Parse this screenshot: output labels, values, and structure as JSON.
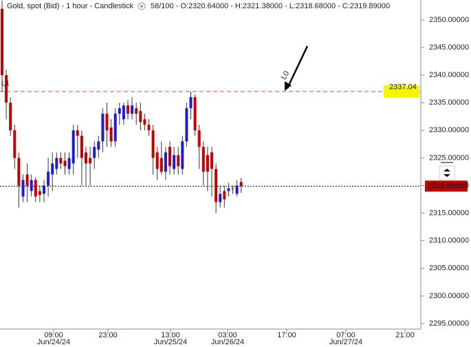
{
  "chart_data": {
    "type": "candlestick",
    "title": "Gold, spot (Bid) - 1 hour - Candlestick",
    "subtitle": "58/100 - O:2320.64000 - H:2321.38000 - L:2318.68000 - C:2319.89000",
    "open": [
      2352,
      2340,
      2335,
      2330,
      2325,
      2318,
      2322,
      2319,
      2321,
      2319,
      2318.5,
      2320,
      2322,
      2323,
      2325,
      2324.5,
      2323,
      2324,
      2330,
      2329,
      2326,
      2325,
      2325,
      2326.5,
      2328,
      2333,
      2330.5,
      2328,
      2333,
      2332,
      2334.5,
      2333,
      2334,
      2333.5,
      2332,
      2331,
      2330,
      2326,
      2325,
      2322.5,
      2327,
      2323,
      2325.5,
      2323,
      2328,
      2334,
      2336,
      2330,
      2327,
      2325.5,
      2326,
      2323,
      2317,
      2319,
      2319,
      2319.5,
      2318.5,
      2320.64
    ],
    "high": [
      2353.5,
      2341,
      2336,
      2331,
      2326,
      2322,
      2324,
      2322,
      2321.5,
      2320,
      2321,
      2325,
      2326,
      2326,
      2326,
      2326,
      2326,
      2331,
      2331,
      2330,
      2327,
      2327,
      2328,
      2329,
      2334,
      2335,
      2332,
      2334,
      2335,
      2335,
      2335.5,
      2336,
      2335,
      2335,
      2333,
      2332,
      2331,
      2327,
      2328,
      2327,
      2328,
      2327,
      2327,
      2329,
      2335,
      2337,
      2336.5,
      2331,
      2328,
      2327,
      2327,
      2324,
      2320,
      2320,
      2320.5,
      2320,
      2321,
      2321.38
    ],
    "low": [
      2337,
      2332,
      2329,
      2323,
      2316,
      2317,
      2317,
      2318,
      2317,
      2317,
      2317,
      2318,
      2319,
      2322,
      2323,
      2322,
      2322,
      2322,
      2325,
      2320,
      2320,
      2320,
      2323,
      2325,
      2326,
      2327,
      2327,
      2327,
      2331,
      2331,
      2332,
      2332,
      2331,
      2330,
      2330,
      2329,
      2322,
      2321,
      2322,
      2321,
      2322,
      2322,
      2322,
      2322,
      2327,
      2332,
      2329,
      2323,
      2320,
      2319,
      2318,
      2315,
      2316,
      2316,
      2318,
      2318.5,
      2318,
      2318.68
    ],
    "close": [
      2340,
      2335,
      2330,
      2325,
      2320,
      2321,
      2320,
      2321,
      2318,
      2318.3,
      2320,
      2322.5,
      2324,
      2325,
      2324,
      2323.5,
      2325,
      2330,
      2329,
      2325,
      2324,
      2324,
      2327,
      2328,
      2333,
      2330,
      2328,
      2333,
      2334,
      2334.5,
      2333,
      2334.5,
      2333,
      2331.5,
      2331,
      2330,
      2325,
      2323,
      2322.5,
      2326,
      2323.5,
      2325.5,
      2323.5,
      2328,
      2334,
      2336,
      2330,
      2327,
      2322.5,
      2322.5,
      2323,
      2317,
      2318.5,
      2317.5,
      2319.5,
      2319.4,
      2320,
      2319.89
    ],
    "up_color": "#1c1cd6",
    "down_color": "#c40000",
    "ylim": [
      2294,
      2353.6
    ],
    "yticks": [
      {
        "value": 2295,
        "label": "2295.00000"
      },
      {
        "value": 2300,
        "label": "2300.00000"
      },
      {
        "value": 2305,
        "label": "2305.00000"
      },
      {
        "value": 2310,
        "label": "2310.00000"
      },
      {
        "value": 2315,
        "label": "2315.00000"
      },
      {
        "value": 2320,
        "label": "2320.00000"
      },
      {
        "value": 2325,
        "label": "2325.00000"
      },
      {
        "value": 2330,
        "label": "2330.00000"
      },
      {
        "value": 2335,
        "label": "2335.00000"
      },
      {
        "value": 2340,
        "label": "2340.00000"
      },
      {
        "value": 2345,
        "label": "2345.00000"
      },
      {
        "value": 2350,
        "label": "2350.00000"
      }
    ],
    "x_labels": [
      {
        "time": "09:00",
        "date": "Jun/24/24"
      },
      {
        "time": "23:00",
        "date": null
      },
      {
        "time": "13:00",
        "date": "Jun/25/24"
      },
      {
        "time": "03:00",
        "date": "Jun/26/24"
      },
      {
        "time": "17:00",
        "date": null
      },
      {
        "time": "07:00",
        "date": "Jun/27/24"
      },
      {
        "time": "21:00",
        "date": null
      }
    ],
    "last_price": {
      "value": 2319.89,
      "label": "2319.89000"
    },
    "hline": {
      "value": 2337.04,
      "label": "2337.04",
      "color": "#f08080"
    },
    "line_labels": [
      "L1",
      "L0"
    ]
  }
}
